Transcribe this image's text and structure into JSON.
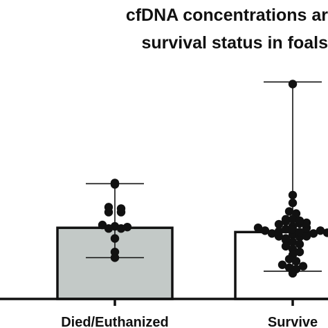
{
  "chart_data": {
    "type": "bar",
    "title_lines": [
      "cfDNA concentrations ar",
      "survival status in foals"
    ],
    "categories": [
      "Died/Euthanized",
      "Survive"
    ],
    "values": [
      1.0,
      0.94
    ],
    "error_bars": [
      {
        "min": 0.58,
        "max": 1.62
      },
      {
        "min": 0.39,
        "max": 3.05
      }
    ],
    "ylim": [
      0,
      3.2
    ],
    "bar_colors": [
      "#c3c9c7",
      "#ffffff"
    ],
    "axis_color": "#111111",
    "point_color": "#111111",
    "points": [
      [
        1.61,
        1.22,
        1.29,
        1.22,
        1.27,
        1.04,
        1.02,
        0.99,
        0.99,
        1.01,
        0.85,
        0.66,
        0.58,
        1.63
      ],
      [
        3.02,
        1.46,
        1.35,
        1.23,
        1.12,
        1.2,
        1.05,
        1.09,
        1.0,
        0.96,
        0.92,
        0.88,
        0.85,
        0.95,
        0.98,
        1.02,
        0.9,
        0.87,
        1.06,
        1.12,
        0.98,
        0.94,
        0.88,
        0.83,
        0.8,
        0.77,
        0.74,
        0.7,
        0.66,
        0.62,
        0.56,
        0.53,
        0.48,
        0.44,
        0.42,
        0.46,
        0.36,
        1.0,
        0.92,
        1.07,
        0.96,
        1.1,
        0.93
      ]
    ]
  }
}
